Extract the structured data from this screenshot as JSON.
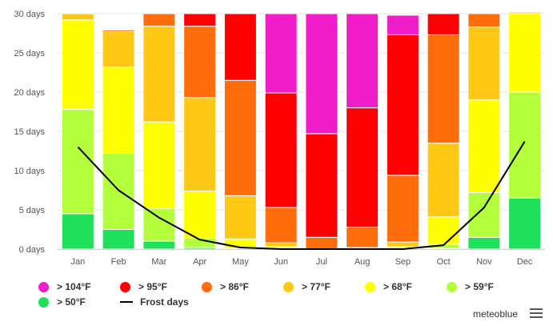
{
  "chart_data": {
    "type": "bar",
    "stacked": true,
    "categories": [
      "Jan",
      "Feb",
      "Mar",
      "Apr",
      "May",
      "Jun",
      "Jul",
      "Aug",
      "Sep",
      "Oct",
      "Nov",
      "Dec"
    ],
    "y_tick_labels": [
      "0 days",
      "5 days",
      "10 days",
      "15 days",
      "20 days",
      "25 days",
      "30 days"
    ],
    "ylim": [
      0,
      30
    ],
    "grid": true,
    "legend_position": "bottom",
    "series": [
      {
        "name": "> 50°F",
        "color": "#1ee05a",
        "values": [
          4.5,
          2.5,
          1,
          0.2,
          0,
          0,
          0,
          0,
          0,
          0.1,
          1.5,
          6.5
        ]
      },
      {
        "name": "> 59°F",
        "color": "#b4ff3c",
        "values": [
          13.3,
          9.7,
          4.2,
          1.2,
          0.1,
          0.1,
          0,
          0,
          0.1,
          0.5,
          5.7,
          13.5
        ]
      },
      {
        "name": "> 68°F",
        "color": "#ffff00",
        "values": [
          11.4,
          11,
          11,
          6,
          1.2,
          0.2,
          0,
          0.1,
          0.2,
          3.5,
          11.8,
          10
        ]
      },
      {
        "name": "> 77°F",
        "color": "#ffc814",
        "values": [
          0.8,
          4.5,
          12.2,
          11.9,
          5.5,
          0.5,
          0,
          0.1,
          0.6,
          9.4,
          9.3,
          0.2
        ]
      },
      {
        "name": "> 86°F",
        "color": "#ff6e0a",
        "values": [
          0,
          0.2,
          1.6,
          9.1,
          14.7,
          4.5,
          1.5,
          2.6,
          8.5,
          13.8,
          1.7,
          0
        ]
      },
      {
        "name": "> 95°F",
        "color": "#ff0000",
        "values": [
          0,
          0,
          0,
          1.6,
          8.5,
          14.6,
          13.2,
          15.2,
          17.9,
          2.7,
          0,
          0
        ]
      },
      {
        "name": "> 104°F",
        "color": "#f01ec8",
        "values": [
          0,
          0,
          0,
          0,
          0,
          10.1,
          15.3,
          12,
          2.5,
          0,
          0,
          0
        ]
      }
    ],
    "line_series": {
      "name": "Frost days",
      "color": "#000000",
      "values": [
        13,
        7.5,
        4,
        1.2,
        0.2,
        0,
        0,
        0,
        0,
        0.5,
        5.3,
        13.7
      ]
    }
  },
  "legend": {
    "items": [
      {
        "label": "> 104°F",
        "color": "#f01ec8",
        "kind": "dot"
      },
      {
        "label": "> 95°F",
        "color": "#ff0000",
        "kind": "dot"
      },
      {
        "label": "> 86°F",
        "color": "#ff6e0a",
        "kind": "dot"
      },
      {
        "label": "> 77°F",
        "color": "#ffc814",
        "kind": "dot"
      },
      {
        "label": "> 68°F",
        "color": "#ffff00",
        "kind": "dot"
      },
      {
        "label": "> 59°F",
        "color": "#b4ff3c",
        "kind": "dot"
      },
      {
        "label": "> 50°F",
        "color": "#1ee05a",
        "kind": "dot"
      },
      {
        "label": "Frost days",
        "color": "#000000",
        "kind": "line"
      }
    ]
  },
  "footer": {
    "brand": "meteoblue",
    "menu_icon": "hamburger-menu-icon"
  }
}
